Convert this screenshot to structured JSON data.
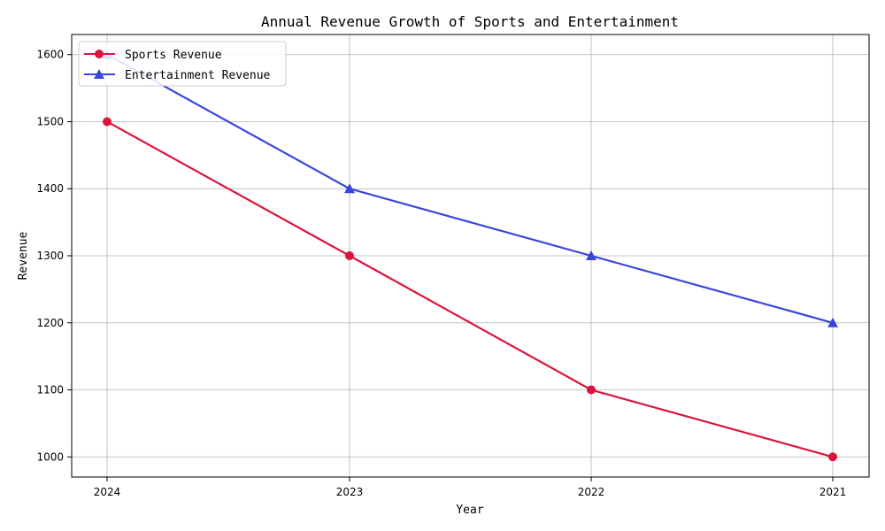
{
  "chart_data": {
    "type": "line",
    "title": "Annual Revenue Growth of Sports and Entertainment",
    "xlabel": "Year",
    "ylabel": "Revenue",
    "categories": [
      "2024",
      "2023",
      "2022",
      "2021"
    ],
    "ylim": [
      970,
      1630
    ],
    "yticks": [
      1000,
      1100,
      1200,
      1300,
      1400,
      1500,
      1600
    ],
    "grid": true,
    "legend_position": "top-left",
    "series": [
      {
        "name": "Sports Revenue",
        "values": [
          1500,
          1300,
          1100,
          1000
        ],
        "color": "#dc143c",
        "marker": "circle"
      },
      {
        "name": "Entertainment Revenue",
        "values": [
          1600,
          1400,
          1300,
          1200
        ],
        "color": "#3a45e0",
        "marker": "triangle"
      }
    ]
  }
}
